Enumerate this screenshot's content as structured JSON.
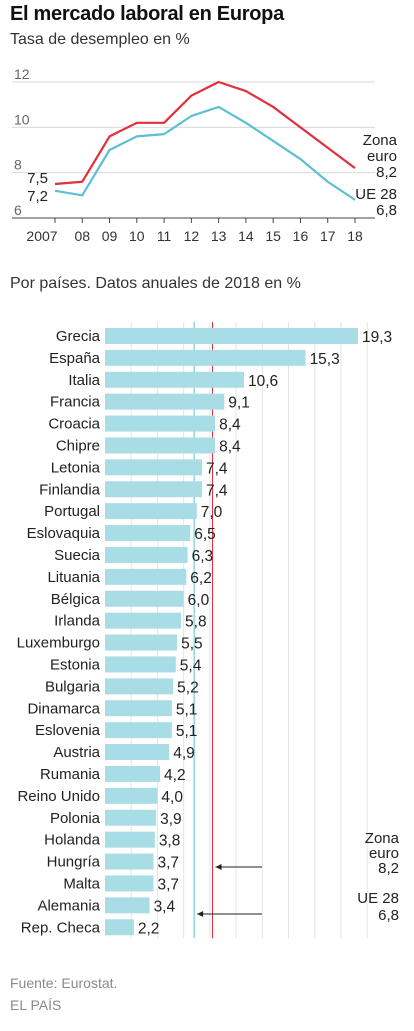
{
  "header": {
    "title": "El mercado laboral en Europa",
    "subtitle": "Tasa de desempleo en %"
  },
  "colors": {
    "eurozone": "#e0303a",
    "eu28": "#5bbfd6",
    "bar": "#a9dde6",
    "grid": "#d9d9d9"
  },
  "chart_data": [
    {
      "type": "line",
      "x": [
        "2007",
        "08",
        "09",
        "10",
        "11",
        "12",
        "13",
        "14",
        "15",
        "16",
        "17",
        "18"
      ],
      "ylim": [
        6,
        12
      ],
      "yticks": [
        "6",
        "8",
        "10",
        "12"
      ],
      "series": [
        {
          "name": "Zona euro",
          "values": [
            7.5,
            7.6,
            9.6,
            10.2,
            10.2,
            11.4,
            12.0,
            11.6,
            10.9,
            10.0,
            9.1,
            8.2
          ]
        },
        {
          "name": "UE 28",
          "values": [
            7.2,
            7.0,
            9.0,
            9.6,
            9.7,
            10.5,
            10.9,
            10.2,
            9.4,
            8.6,
            7.6,
            6.8
          ]
        }
      ],
      "annotations": {
        "start_top": "7,5",
        "start_bottom": "7,2",
        "end_euro_1": "Zona",
        "end_euro_2": "euro",
        "end_euro_value": "8,2",
        "end_eu": "UE 28",
        "end_eu_value": "6,8"
      }
    },
    {
      "type": "bar",
      "title": "Por países. Datos anuales de 2018 en %",
      "xlim": [
        0,
        20
      ],
      "categories": [
        "Grecia",
        "España",
        "Italia",
        "Francia",
        "Croacia",
        "Chipre",
        "Letonia",
        "Finlandia",
        "Portugal",
        "Eslovaquia",
        "Suecia",
        "Lituania",
        "Bélgica",
        "Irlanda",
        "Luxemburgo",
        "Estonia",
        "Bulgaria",
        "Dinamarca",
        "Eslovenia",
        "Austria",
        "Rumania",
        "Reino Unido",
        "Polonia",
        "Holanda",
        "Hungría",
        "Malta",
        "Alemania",
        "Rep. Checa"
      ],
      "values": [
        19.3,
        15.3,
        10.6,
        9.1,
        8.4,
        8.4,
        7.4,
        7.4,
        7.0,
        6.5,
        6.3,
        6.2,
        6.0,
        5.8,
        5.5,
        5.4,
        5.2,
        5.1,
        5.1,
        4.9,
        4.2,
        4.0,
        3.9,
        3.8,
        3.7,
        3.7,
        3.4,
        2.2
      ],
      "value_labels": [
        "19,3",
        "15,3",
        "10,6",
        "9,1",
        "8,4",
        "8,4",
        "7,4",
        "7,4",
        "7,0",
        "6,5",
        "6,3",
        "6,2",
        "6,0",
        "5,8",
        "5,5",
        "5,4",
        "5,2",
        "5,1",
        "5,1",
        "4,9",
        "4,2",
        "4,0",
        "3,9",
        "3,8",
        "3,7",
        "3,7",
        "3,4",
        "2,2"
      ],
      "reference_lines": [
        {
          "name_1": "Zona",
          "name_2": "euro",
          "value": 8.2,
          "label": "8,2"
        },
        {
          "name_1": "UE 28",
          "name_2": "",
          "value": 6.8,
          "label": "6,8"
        }
      ]
    }
  ],
  "footer": {
    "source": "Fuente: Eurostat.",
    "credit": "EL PAÍS"
  }
}
